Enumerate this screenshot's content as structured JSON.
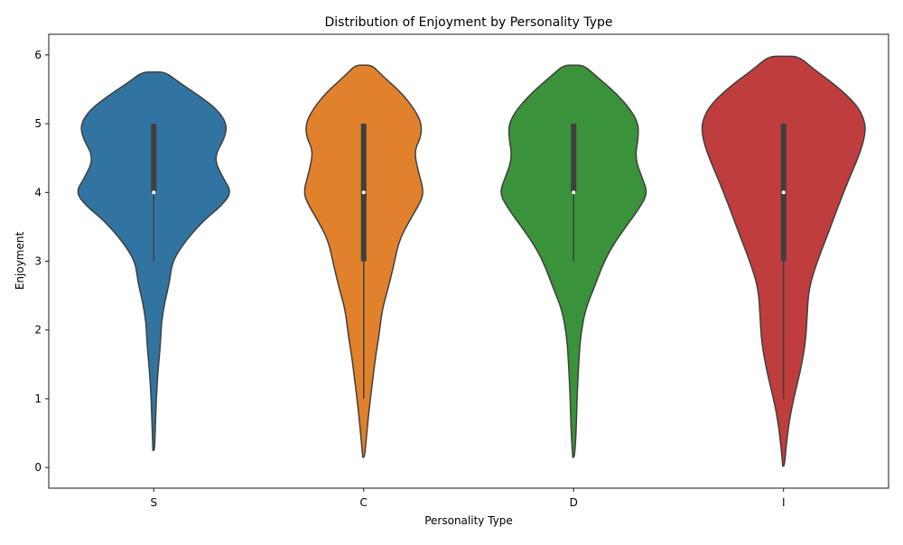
{
  "chart_data": {
    "type": "violin",
    "title": "Distribution of Enjoyment by Personality Type",
    "xlabel": "Personality Type",
    "ylabel": "Enjoyment",
    "ylim": [
      -0.3,
      6.3
    ],
    "yticks": [
      0,
      1,
      2,
      3,
      4,
      5,
      6
    ],
    "grid": false,
    "legend": "none",
    "categories": [
      "S",
      "C",
      "D",
      "I"
    ],
    "colors": [
      "#3274a1",
      "#e1812c",
      "#3a923a",
      "#c03d3e"
    ],
    "series": [
      {
        "category": "S",
        "min": 0.25,
        "max": 5.75,
        "q1": 4.0,
        "median": 4.0,
        "q3": 5.0,
        "whisker_low": 3.0,
        "whisker_high": 5.0,
        "density": [
          [
            0.25,
            0.01
          ],
          [
            0.6,
            0.02
          ],
          [
            1.0,
            0.03
          ],
          [
            1.4,
            0.05
          ],
          [
            1.8,
            0.08
          ],
          [
            2.1,
            0.09
          ],
          [
            2.4,
            0.13
          ],
          [
            2.7,
            0.19
          ],
          [
            3.0,
            0.22
          ],
          [
            3.3,
            0.38
          ],
          [
            3.6,
            0.6
          ],
          [
            3.8,
            0.8
          ],
          [
            4.0,
            0.93
          ],
          [
            4.2,
            0.83
          ],
          [
            4.5,
            0.71
          ],
          [
            4.8,
            0.85
          ],
          [
            5.0,
            0.87
          ],
          [
            5.2,
            0.76
          ],
          [
            5.4,
            0.55
          ],
          [
            5.6,
            0.3
          ],
          [
            5.75,
            0.14
          ]
        ]
      },
      {
        "category": "C",
        "min": 0.15,
        "max": 5.85,
        "q1": 3.0,
        "median": 4.0,
        "q3": 5.0,
        "whisker_low": 1.0,
        "whisker_high": 5.0,
        "density": [
          [
            0.15,
            0.01
          ],
          [
            0.4,
            0.03
          ],
          [
            0.8,
            0.06
          ],
          [
            1.2,
            0.1
          ],
          [
            1.6,
            0.14
          ],
          [
            1.9,
            0.18
          ],
          [
            2.3,
            0.22
          ],
          [
            2.6,
            0.29
          ],
          [
            2.9,
            0.35
          ],
          [
            3.3,
            0.42
          ],
          [
            3.6,
            0.55
          ],
          [
            3.8,
            0.65
          ],
          [
            4.0,
            0.72
          ],
          [
            4.3,
            0.65
          ],
          [
            4.6,
            0.6
          ],
          [
            4.8,
            0.68
          ],
          [
            5.0,
            0.69
          ],
          [
            5.2,
            0.61
          ],
          [
            5.45,
            0.45
          ],
          [
            5.7,
            0.22
          ],
          [
            5.85,
            0.1
          ]
        ]
      },
      {
        "category": "D",
        "min": 0.15,
        "max": 5.85,
        "q1": 4.0,
        "median": 4.0,
        "q3": 5.0,
        "whisker_low": 3.0,
        "whisker_high": 5.0,
        "density": [
          [
            0.15,
            0.01
          ],
          [
            0.5,
            0.03
          ],
          [
            1.0,
            0.04
          ],
          [
            1.5,
            0.06
          ],
          [
            1.9,
            0.08
          ],
          [
            2.3,
            0.14
          ],
          [
            2.6,
            0.24
          ],
          [
            2.9,
            0.33
          ],
          [
            3.2,
            0.45
          ],
          [
            3.5,
            0.62
          ],
          [
            3.8,
            0.8
          ],
          [
            4.0,
            0.88
          ],
          [
            4.2,
            0.82
          ],
          [
            4.5,
            0.73
          ],
          [
            4.8,
            0.77
          ],
          [
            5.0,
            0.77
          ],
          [
            5.2,
            0.68
          ],
          [
            5.45,
            0.5
          ],
          [
            5.7,
            0.26
          ],
          [
            5.85,
            0.12
          ]
        ]
      },
      {
        "category": "I",
        "min": 0.02,
        "max": 5.98,
        "q1": 3.0,
        "median": 4.0,
        "q3": 5.0,
        "whisker_low": 1.0,
        "whisker_high": 5.0,
        "density": [
          [
            0.02,
            0.01
          ],
          [
            0.3,
            0.03
          ],
          [
            0.7,
            0.07
          ],
          [
            1.0,
            0.12
          ],
          [
            1.4,
            0.2
          ],
          [
            1.8,
            0.26
          ],
          [
            2.2,
            0.28
          ],
          [
            2.6,
            0.3
          ],
          [
            3.0,
            0.4
          ],
          [
            3.4,
            0.53
          ],
          [
            3.8,
            0.65
          ],
          [
            4.2,
            0.78
          ],
          [
            4.6,
            0.92
          ],
          [
            4.9,
            0.98
          ],
          [
            5.1,
            0.95
          ],
          [
            5.3,
            0.85
          ],
          [
            5.55,
            0.63
          ],
          [
            5.8,
            0.35
          ],
          [
            5.98,
            0.18
          ]
        ]
      }
    ]
  }
}
